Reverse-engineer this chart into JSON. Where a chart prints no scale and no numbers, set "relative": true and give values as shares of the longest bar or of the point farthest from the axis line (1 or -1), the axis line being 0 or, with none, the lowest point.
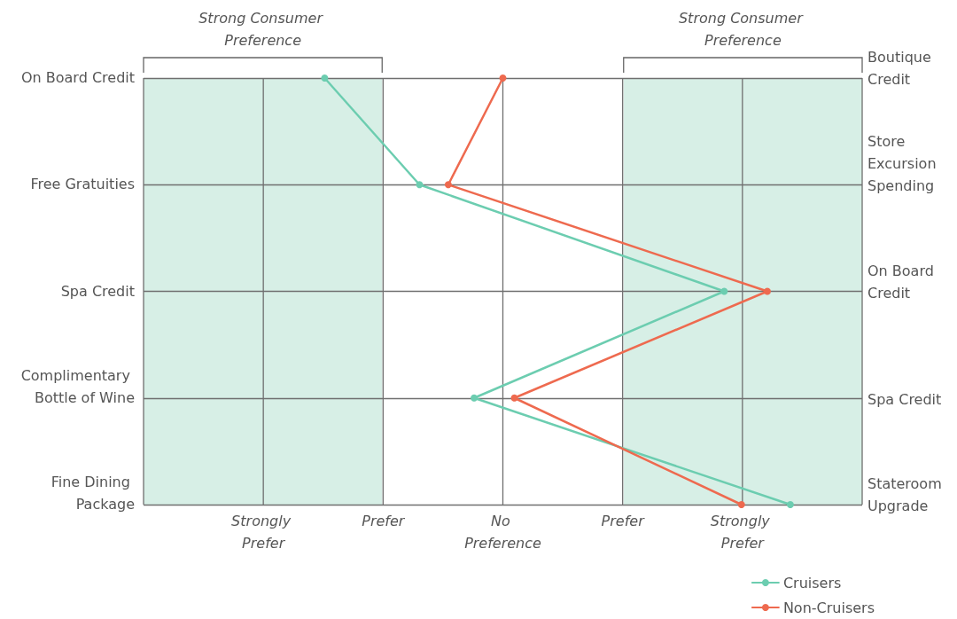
{
  "chart_data": {
    "type": "line",
    "orientation": "horizontal",
    "relative": true,
    "categories": [
      "On Board Credit",
      "Free Gratuities",
      "Spa Credit",
      "Complimentary Bottle of Wine",
      "Fine Dining Package"
    ],
    "y2_categories": [
      "Boutique Credit",
      "Store Excursion Spending",
      "On Board Credit",
      "Spa Credit",
      "Stateroom Upgrade"
    ],
    "series": [
      {
        "name": "Cruisers",
        "color": "#6ccdb0",
        "values": [
          -0.62,
          -0.29,
          0.77,
          -0.1,
          1
        ]
      },
      {
        "name": "Non-Cruisers",
        "color": "#ee6a4f",
        "values": [
          0,
          -0.19,
          0.92,
          0.04,
          0.83
        ]
      }
    ],
    "annotations": [
      "Strongly Prefer",
      "Prefer",
      "No Preference",
      "Prefer",
      "Strongly Prefer"
    ],
    "bands": [
      {
        "axis": "x",
        "from": -1.25,
        "to": -0.42,
        "label": "Strong Consumer Preference",
        "color": "#d7efe6"
      },
      {
        "axis": "x",
        "from": 0.42,
        "to": 1.25,
        "label": "Strong Consumer Preference",
        "color": "#d7efe6"
      }
    ],
    "grid": true,
    "legend": "bottom right",
    "marker": "circle",
    "line_style": "solid"
  }
}
